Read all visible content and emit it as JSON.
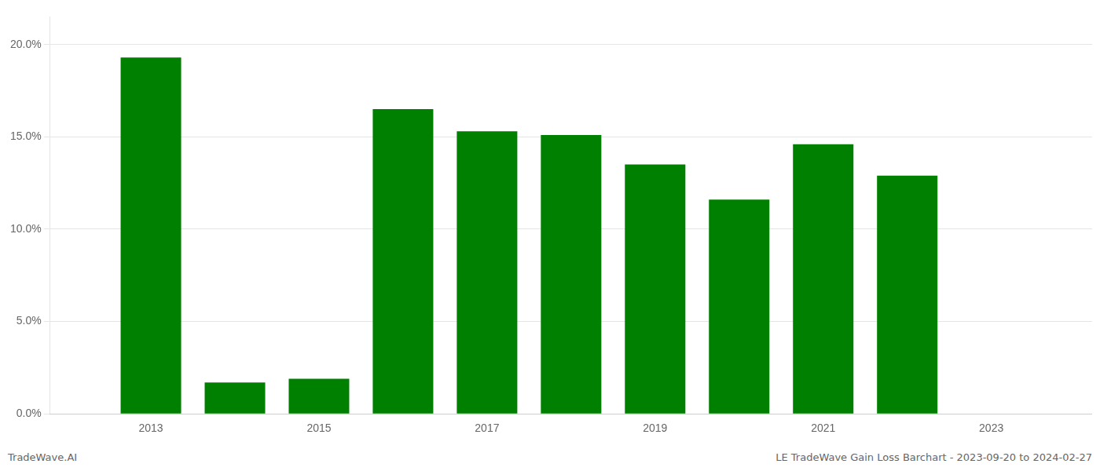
{
  "chart_data": {
    "type": "bar",
    "x": [
      2013,
      2014,
      2015,
      2016,
      2017,
      2018,
      2019,
      2020,
      2021,
      2022
    ],
    "values": [
      0.193,
      0.017,
      0.019,
      0.165,
      0.153,
      0.151,
      0.135,
      0.116,
      0.146,
      0.129
    ],
    "color": "#008000",
    "xlim": [
      2011.8,
      2024.2
    ],
    "xticks": [
      2013,
      2015,
      2017,
      2019,
      2021,
      2023
    ],
    "ylim": [
      0,
      0.215
    ],
    "yticks": [
      {
        "value": 0.0,
        "label": "0.0%"
      },
      {
        "value": 0.05,
        "label": "5.0%"
      },
      {
        "value": 0.1,
        "label": "10.0%"
      },
      {
        "value": 0.15,
        "label": "15.0%"
      },
      {
        "value": 0.2,
        "label": "20.0%"
      }
    ],
    "grid": "y",
    "annotations": [
      "TradeWave.AI",
      "LE TradeWave Gain Loss Barchart - 2023-09-20 to 2024-02-27"
    ]
  }
}
